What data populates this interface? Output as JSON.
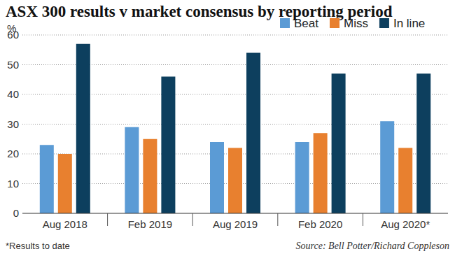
{
  "chart_data": {
    "type": "bar",
    "title": "ASX 300 results v market consensus by reporting period",
    "y_label": "%",
    "categories": [
      "Aug 2018",
      "Feb 2019",
      "Aug 2019",
      "Feb 2020",
      "Aug 2020*"
    ],
    "series": [
      {
        "name": "Beat",
        "color": "#5b9bd5",
        "values": [
          23,
          29,
          24,
          24,
          31
        ]
      },
      {
        "name": "Miss",
        "color": "#e8802f",
        "values": [
          20,
          25,
          22,
          27,
          22
        ]
      },
      {
        "name": "In line",
        "color": "#0d3f5e",
        "values": [
          57,
          46,
          54,
          47,
          47
        ]
      }
    ],
    "ylim": [
      0,
      60
    ],
    "yticks": [
      0,
      10,
      20,
      30,
      40,
      50,
      60
    ],
    "grid": true,
    "legend": "top-right",
    "footnote": "*Results to date",
    "source": "Source: Bell Potter/Richard Coppleson"
  }
}
